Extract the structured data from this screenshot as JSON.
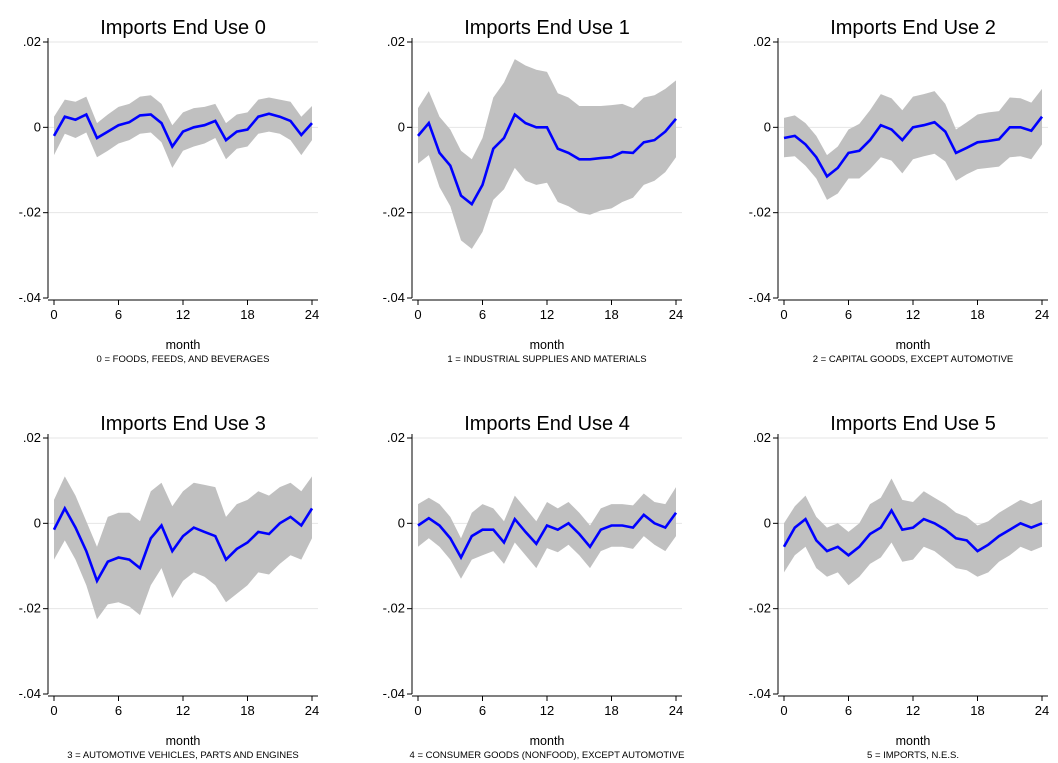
{
  "chart_data": [
    {
      "type": "line",
      "title": "Imports End Use 0",
      "xlabel": "month",
      "note": "0 = FOODS, FEEDS, AND BEVERAGES",
      "x": [
        0,
        1,
        2,
        3,
        4,
        5,
        6,
        7,
        8,
        9,
        10,
        11,
        12,
        13,
        14,
        15,
        16,
        17,
        18,
        19,
        20,
        21,
        22,
        23,
        24
      ],
      "xticks": [
        "0",
        "6",
        "12",
        "18",
        "24"
      ],
      "yticks": [
        ".02",
        "0",
        "-.02",
        "-.04"
      ],
      "xlim": [
        0,
        24
      ],
      "ylim": [
        -0.04,
        0.02
      ],
      "grid": true,
      "series": [
        {
          "values": [
            -0.002,
            0.0025,
            0.0018,
            0.003,
            -0.0025,
            -0.001,
            0.0005,
            0.0012,
            0.0028,
            0.003,
            0.001,
            -0.0045,
            -0.001,
            0.0,
            0.0005,
            0.0015,
            -0.003,
            -0.001,
            -0.0005,
            0.0025,
            0.0032,
            0.0025,
            0.0015,
            -0.0018,
            0.001
          ],
          "upper": [
            0.0025,
            0.0065,
            0.006,
            0.0072,
            0.001,
            0.003,
            0.0048,
            0.0055,
            0.0072,
            0.0075,
            0.0055,
            0.0005,
            0.0035,
            0.0045,
            0.0048,
            0.0055,
            0.001,
            0.003,
            0.0035,
            0.0065,
            0.007,
            0.0065,
            0.006,
            0.0025,
            0.005
          ],
          "lower": [
            -0.0065,
            -0.0015,
            -0.0025,
            -0.0012,
            -0.007,
            -0.0055,
            -0.0038,
            -0.003,
            -0.0015,
            -0.0012,
            -0.0035,
            -0.0095,
            -0.0055,
            -0.0045,
            -0.0038,
            -0.0025,
            -0.0075,
            -0.005,
            -0.0045,
            -0.0015,
            -0.001,
            -0.0015,
            -0.003,
            -0.0065,
            -0.003
          ]
        }
      ]
    },
    {
      "type": "line",
      "title": "Imports End Use 1",
      "xlabel": "month",
      "note": "1 = INDUSTRIAL SUPPLIES AND MATERIALS",
      "x": [
        0,
        1,
        2,
        3,
        4,
        5,
        6,
        7,
        8,
        9,
        10,
        11,
        12,
        13,
        14,
        15,
        16,
        17,
        18,
        19,
        20,
        21,
        22,
        23,
        24
      ],
      "xticks": [
        "0",
        "6",
        "12",
        "18",
        "24"
      ],
      "yticks": [
        ".02",
        "0",
        "-.02",
        "-.04"
      ],
      "xlim": [
        0,
        24
      ],
      "ylim": [
        -0.04,
        0.02
      ],
      "grid": true,
      "series": [
        {
          "values": [
            -0.002,
            0.001,
            -0.006,
            -0.009,
            -0.016,
            -0.018,
            -0.0135,
            -0.005,
            -0.0025,
            0.003,
            0.001,
            0.0,
            0.0,
            -0.005,
            -0.006,
            -0.0075,
            -0.0075,
            -0.0072,
            -0.007,
            -0.0058,
            -0.006,
            -0.0035,
            -0.003,
            -0.001,
            0.002
          ],
          "upper": [
            0.0045,
            0.0085,
            0.0025,
            -0.0005,
            -0.0055,
            -0.0075,
            -0.0025,
            0.007,
            0.0105,
            0.016,
            0.0145,
            0.0135,
            0.013,
            0.008,
            0.007,
            0.005,
            0.005,
            0.005,
            0.0052,
            0.0055,
            0.0045,
            0.007,
            0.0075,
            0.009,
            0.011
          ],
          "lower": [
            -0.0085,
            -0.0065,
            -0.014,
            -0.0185,
            -0.0265,
            -0.0285,
            -0.0245,
            -0.017,
            -0.0145,
            -0.0095,
            -0.0125,
            -0.0135,
            -0.013,
            -0.0175,
            -0.0185,
            -0.02,
            -0.0205,
            -0.0195,
            -0.019,
            -0.0175,
            -0.0165,
            -0.0135,
            -0.0125,
            -0.0105,
            -0.007
          ]
        }
      ]
    },
    {
      "type": "line",
      "title": "Imports End Use 2",
      "xlabel": "month",
      "note": "2 = CAPITAL GOODS, EXCEPT AUTOMOTIVE",
      "x": [
        0,
        1,
        2,
        3,
        4,
        5,
        6,
        7,
        8,
        9,
        10,
        11,
        12,
        13,
        14,
        15,
        16,
        17,
        18,
        19,
        20,
        21,
        22,
        23,
        24
      ],
      "xticks": [
        "0",
        "6",
        "12",
        "18",
        "24"
      ],
      "yticks": [
        ".02",
        "0",
        "-.02",
        "-.04"
      ],
      "xlim": [
        0,
        24
      ],
      "ylim": [
        -0.04,
        0.02
      ],
      "grid": true,
      "series": [
        {
          "values": [
            -0.0025,
            -0.002,
            -0.004,
            -0.007,
            -0.0115,
            -0.0095,
            -0.006,
            -0.0055,
            -0.003,
            0.0005,
            -0.0005,
            -0.003,
            0.0,
            0.0005,
            0.0012,
            -0.001,
            -0.006,
            -0.0048,
            -0.0035,
            -0.0032,
            -0.0028,
            0.0,
            0.0,
            -0.0008,
            0.0025
          ],
          "upper": [
            0.0022,
            0.0028,
            0.001,
            -0.002,
            -0.0065,
            -0.0045,
            -0.0005,
            0.0008,
            0.004,
            0.0078,
            0.0068,
            0.004,
            0.0072,
            0.0078,
            0.0085,
            0.0055,
            -0.0005,
            0.0012,
            0.003,
            0.0035,
            0.0038,
            0.007,
            0.0068,
            0.0058,
            0.009
          ],
          "lower": [
            -0.007,
            -0.0068,
            -0.009,
            -0.012,
            -0.017,
            -0.0155,
            -0.012,
            -0.012,
            -0.0098,
            -0.007,
            -0.0078,
            -0.0108,
            -0.0075,
            -0.0068,
            -0.0062,
            -0.008,
            -0.0125,
            -0.011,
            -0.0098,
            -0.0095,
            -0.0092,
            -0.007,
            -0.0068,
            -0.0075,
            -0.004
          ]
        }
      ]
    },
    {
      "type": "line",
      "title": "Imports End Use 3",
      "xlabel": "month",
      "note": "3 = AUTOMOTIVE VEHICLES, PARTS AND ENGINES",
      "x": [
        0,
        1,
        2,
        3,
        4,
        5,
        6,
        7,
        8,
        9,
        10,
        11,
        12,
        13,
        14,
        15,
        16,
        17,
        18,
        19,
        20,
        21,
        22,
        23,
        24
      ],
      "xticks": [
        "0",
        "6",
        "12",
        "18",
        "24"
      ],
      "yticks": [
        ".02",
        "0",
        "-.02",
        "-.04"
      ],
      "xlim": [
        0,
        24
      ],
      "ylim": [
        -0.04,
        0.02
      ],
      "grid": true,
      "series": [
        {
          "values": [
            -0.0015,
            0.0035,
            -0.001,
            -0.0065,
            -0.0135,
            -0.009,
            -0.008,
            -0.0085,
            -0.0105,
            -0.0035,
            -0.0005,
            -0.0065,
            -0.003,
            -0.001,
            -0.002,
            -0.003,
            -0.0085,
            -0.006,
            -0.0045,
            -0.002,
            -0.0025,
            0.0,
            0.0015,
            -0.0005,
            0.0035
          ],
          "upper": [
            0.0055,
            0.011,
            0.0065,
            0.0005,
            -0.0055,
            0.0015,
            0.0025,
            0.0025,
            0.0005,
            0.0075,
            0.0095,
            0.004,
            0.0075,
            0.0095,
            0.009,
            0.0085,
            0.0015,
            0.0045,
            0.0055,
            0.0075,
            0.0065,
            0.0085,
            0.0095,
            0.0075,
            0.011
          ],
          "lower": [
            -0.0085,
            -0.004,
            -0.0085,
            -0.0145,
            -0.0225,
            -0.019,
            -0.0185,
            -0.0195,
            -0.0215,
            -0.0145,
            -0.0105,
            -0.0175,
            -0.0135,
            -0.0115,
            -0.0125,
            -0.0145,
            -0.0185,
            -0.0165,
            -0.0145,
            -0.0115,
            -0.012,
            -0.0095,
            -0.0075,
            -0.0085,
            -0.0035
          ]
        }
      ]
    },
    {
      "type": "line",
      "title": "Imports End Use 4",
      "xlabel": "month",
      "note": "4 = CONSUMER GOODS (NONFOOD), EXCEPT AUTOMOTIVE",
      "x": [
        0,
        1,
        2,
        3,
        4,
        5,
        6,
        7,
        8,
        9,
        10,
        11,
        12,
        13,
        14,
        15,
        16,
        17,
        18,
        19,
        20,
        21,
        22,
        23,
        24
      ],
      "xticks": [
        "0",
        "6",
        "12",
        "18",
        "24"
      ],
      "yticks": [
        ".02",
        "0",
        "-.02",
        "-.04"
      ],
      "xlim": [
        0,
        24
      ],
      "ylim": [
        -0.04,
        0.02
      ],
      "grid": true,
      "series": [
        {
          "values": [
            -0.0005,
            0.0012,
            -0.0005,
            -0.0035,
            -0.008,
            -0.003,
            -0.0015,
            -0.0015,
            -0.0045,
            0.001,
            -0.002,
            -0.0048,
            -0.0005,
            -0.0015,
            0.0,
            -0.0025,
            -0.0055,
            -0.0015,
            -0.0005,
            -0.0005,
            -0.001,
            0.002,
            0.0,
            -0.001,
            0.0025
          ],
          "upper": [
            0.0045,
            0.006,
            0.0045,
            0.0015,
            -0.0035,
            0.0025,
            0.0045,
            0.0035,
            0.0005,
            0.0065,
            0.0035,
            0.0005,
            0.005,
            0.0035,
            0.005,
            0.0025,
            -0.0005,
            0.0035,
            0.0045,
            0.0045,
            0.0042,
            0.007,
            0.005,
            0.0045,
            0.0085
          ],
          "lower": [
            -0.0055,
            -0.0035,
            -0.0055,
            -0.0085,
            -0.013,
            -0.0085,
            -0.0075,
            -0.0065,
            -0.0095,
            -0.0045,
            -0.0075,
            -0.0105,
            -0.0058,
            -0.0068,
            -0.005,
            -0.0075,
            -0.0105,
            -0.0065,
            -0.0055,
            -0.0055,
            -0.006,
            -0.003,
            -0.005,
            -0.0065,
            -0.003
          ]
        }
      ]
    },
    {
      "type": "line",
      "title": "Imports End Use 5",
      "xlabel": "month",
      "note": "5 = IMPORTS, N.E.S.",
      "x": [
        0,
        1,
        2,
        3,
        4,
        5,
        6,
        7,
        8,
        9,
        10,
        11,
        12,
        13,
        14,
        15,
        16,
        17,
        18,
        19,
        20,
        21,
        22,
        23,
        24
      ],
      "xticks": [
        "0",
        "6",
        "12",
        "18",
        "24"
      ],
      "yticks": [
        ".02",
        "0",
        "-.02",
        "-.04"
      ],
      "xlim": [
        0,
        24
      ],
      "ylim": [
        -0.04,
        0.02
      ],
      "grid": true,
      "series": [
        {
          "values": [
            -0.0055,
            -0.001,
            0.001,
            -0.004,
            -0.0065,
            -0.0055,
            -0.0075,
            -0.0055,
            -0.0025,
            -0.001,
            0.003,
            -0.0015,
            -0.001,
            0.001,
            0.0,
            -0.0015,
            -0.0035,
            -0.004,
            -0.0065,
            -0.005,
            -0.003,
            -0.0015,
            0.0,
            -0.001,
            0.0
          ],
          "upper": [
            0.0,
            0.004,
            0.0065,
            0.0015,
            -0.001,
            0.0,
            -0.002,
            0.0,
            0.0045,
            0.006,
            0.0105,
            0.0055,
            0.005,
            0.0075,
            0.006,
            0.0045,
            0.0025,
            0.0015,
            -0.0005,
            0.0005,
            0.0025,
            0.004,
            0.0055,
            0.0045,
            0.0055
          ],
          "lower": [
            -0.0115,
            -0.0075,
            -0.0055,
            -0.0105,
            -0.0125,
            -0.0115,
            -0.0145,
            -0.0125,
            -0.0095,
            -0.008,
            -0.0045,
            -0.009,
            -0.0085,
            -0.0055,
            -0.0065,
            -0.0085,
            -0.0105,
            -0.011,
            -0.0125,
            -0.0115,
            -0.009,
            -0.0075,
            -0.0055,
            -0.0065,
            -0.0055
          ]
        }
      ]
    }
  ],
  "colors": {
    "line": "#0000ff",
    "band": "#c0c0c0",
    "grid": "#e6e6e6",
    "axis": "#000000"
  }
}
